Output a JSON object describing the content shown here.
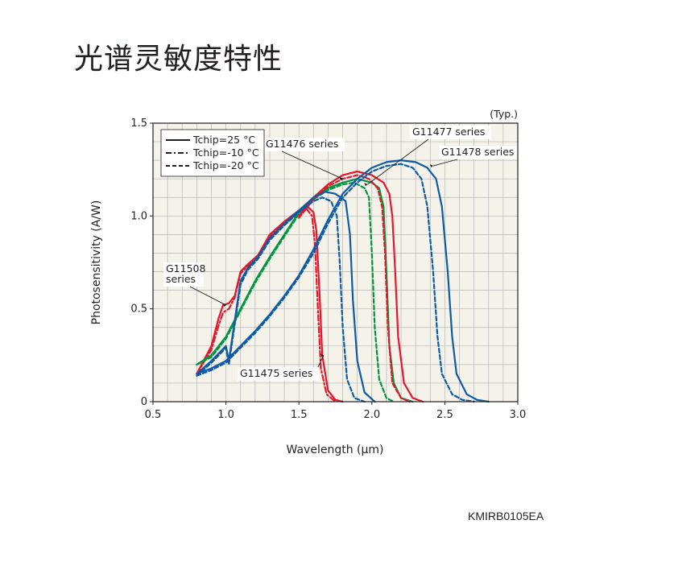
{
  "page": {
    "title": "光谱灵敏度特性",
    "figure_code": "KMIRB0105EA"
  },
  "colors": {
    "G11508": "#e3182d",
    "G11475": "#e3182d",
    "G11476": "#00963f",
    "G11477": "#e3182d",
    "G11478": "#0d5ba6",
    "grid": "#b5b5b5",
    "plot_bg": "#f5f2ea",
    "axis": "#231f20"
  },
  "chart_data": {
    "type": "line",
    "title": "",
    "xlabel": "Wavelength (µm)",
    "ylabel": "Photosensitivity (A/W)",
    "typ_note": "(Typ.)",
    "xlim": [
      0.5,
      3.0
    ],
    "ylim": [
      0,
      1.5
    ],
    "x_ticks": [
      "0.5",
      "1.0",
      "1.5",
      "2.0",
      "2.5",
      "3.0"
    ],
    "y_ticks": [
      "0",
      "0.5",
      "1.0",
      "1.5"
    ],
    "grid": true,
    "legend": {
      "placement": "top-left",
      "entries": [
        {
          "label": "Tchip=25 °C",
          "style": "solid"
        },
        {
          "label": "Tchip=-10 °C",
          "style": "dashdot"
        },
        {
          "label": "Tchip=-20 °C",
          "style": "dashed"
        }
      ]
    },
    "annotations": [
      {
        "text": "G11508\nseries",
        "target": [
          1.0,
          0.52
        ]
      },
      {
        "text": "G11475 series",
        "target": [
          1.67,
          0.25
        ]
      },
      {
        "text": "G11476 series",
        "target": [
          1.8,
          1.2
        ]
      },
      {
        "text": "G11477 series",
        "target": [
          1.97,
          1.17
        ]
      },
      {
        "text": "G11478 series",
        "target": [
          2.42,
          1.27
        ]
      }
    ],
    "series": [
      {
        "name": "G11508 series",
        "family": "G11508",
        "tchip": "25 °C",
        "style": "solid",
        "colorKey": "G11508",
        "points": [
          [
            0.8,
            0.15
          ],
          [
            0.9,
            0.3
          ],
          [
            0.95,
            0.45
          ],
          [
            0.98,
            0.52
          ],
          [
            1.02,
            0.53
          ],
          [
            1.06,
            0.57
          ],
          [
            1.1,
            0.7
          ],
          [
            1.15,
            0.74
          ],
          [
            1.22,
            0.79
          ],
          [
            1.3,
            0.9
          ],
          [
            1.4,
            0.97
          ],
          [
            1.5,
            1.03
          ],
          [
            1.56,
            1.05
          ],
          [
            1.6,
            1.02
          ],
          [
            1.62,
            0.92
          ],
          [
            1.64,
            0.6
          ],
          [
            1.66,
            0.25
          ],
          [
            1.7,
            0.06
          ],
          [
            1.75,
            0.01
          ],
          [
            1.8,
            0
          ]
        ]
      },
      {
        "name": "G11508 series",
        "family": "G11508",
        "tchip": "-10 °C",
        "style": "dashdot",
        "colorKey": "G11508",
        "points": [
          [
            0.8,
            0.15
          ],
          [
            0.9,
            0.28
          ],
          [
            0.95,
            0.41
          ],
          [
            0.98,
            0.48
          ],
          [
            1.02,
            0.5
          ],
          [
            1.06,
            0.56
          ],
          [
            1.1,
            0.69
          ],
          [
            1.15,
            0.73
          ],
          [
            1.22,
            0.78
          ],
          [
            1.3,
            0.89
          ],
          [
            1.4,
            0.96
          ],
          [
            1.5,
            1.02
          ],
          [
            1.55,
            1.04
          ],
          [
            1.59,
            1.0
          ],
          [
            1.61,
            0.85
          ],
          [
            1.63,
            0.5
          ],
          [
            1.65,
            0.18
          ],
          [
            1.69,
            0.04
          ],
          [
            1.75,
            0
          ]
        ]
      },
      {
        "name": "G11476 series",
        "family": "G11476",
        "tchip": "25 °C",
        "style": "solid",
        "colorKey": "G11476",
        "points": [
          [
            0.8,
            0.2
          ],
          [
            0.9,
            0.25
          ],
          [
            1.0,
            0.35
          ],
          [
            1.1,
            0.5
          ],
          [
            1.2,
            0.65
          ],
          [
            1.3,
            0.78
          ],
          [
            1.4,
            0.9
          ],
          [
            1.5,
            1.02
          ],
          [
            1.6,
            1.1
          ],
          [
            1.7,
            1.15
          ],
          [
            1.8,
            1.18
          ],
          [
            1.9,
            1.2
          ],
          [
            2.0,
            1.18
          ],
          [
            2.05,
            1.15
          ],
          [
            2.08,
            1.05
          ],
          [
            2.1,
            0.7
          ],
          [
            2.12,
            0.3
          ],
          [
            2.15,
            0.1
          ],
          [
            2.2,
            0.02
          ],
          [
            2.28,
            0
          ]
        ]
      },
      {
        "name": "G11476 series",
        "family": "G11476",
        "tchip": "-20 °C",
        "style": "dashed",
        "colorKey": "G11476",
        "points": [
          [
            0.8,
            0.2
          ],
          [
            0.9,
            0.24
          ],
          [
            1.0,
            0.34
          ],
          [
            1.1,
            0.49
          ],
          [
            1.2,
            0.64
          ],
          [
            1.3,
            0.77
          ],
          [
            1.4,
            0.89
          ],
          [
            1.5,
            1.01
          ],
          [
            1.6,
            1.09
          ],
          [
            1.7,
            1.14
          ],
          [
            1.8,
            1.17
          ],
          [
            1.88,
            1.18
          ],
          [
            1.95,
            1.15
          ],
          [
            1.98,
            1.1
          ],
          [
            2.0,
            0.8
          ],
          [
            2.02,
            0.4
          ],
          [
            2.05,
            0.12
          ],
          [
            2.1,
            0.02
          ],
          [
            2.15,
            0
          ]
        ]
      },
      {
        "name": "G11477 series",
        "family": "G11477",
        "tchip": "25 °C",
        "style": "solid",
        "colorKey": "G11477",
        "points": [
          [
            1.5,
            1.0
          ],
          [
            1.6,
            1.1
          ],
          [
            1.7,
            1.17
          ],
          [
            1.8,
            1.22
          ],
          [
            1.9,
            1.24
          ],
          [
            2.0,
            1.22
          ],
          [
            2.08,
            1.18
          ],
          [
            2.12,
            1.12
          ],
          [
            2.14,
            1.0
          ],
          [
            2.16,
            0.7
          ],
          [
            2.18,
            0.35
          ],
          [
            2.22,
            0.1
          ],
          [
            2.28,
            0.02
          ],
          [
            2.35,
            0
          ]
        ]
      },
      {
        "name": "G11477 series",
        "family": "G11477",
        "tchip": "-20 °C",
        "style": "dashed",
        "colorKey": "G11477",
        "points": [
          [
            1.5,
            0.99
          ],
          [
            1.6,
            1.09
          ],
          [
            1.7,
            1.16
          ],
          [
            1.8,
            1.2
          ],
          [
            1.9,
            1.22
          ],
          [
            1.98,
            1.2
          ],
          [
            2.04,
            1.15
          ],
          [
            2.07,
            1.05
          ],
          [
            2.09,
            0.8
          ],
          [
            2.11,
            0.4
          ],
          [
            2.14,
            0.1
          ],
          [
            2.2,
            0.02
          ],
          [
            2.26,
            0
          ]
        ]
      },
      {
        "name": "G11478 series",
        "family": "G11478",
        "tchip": "25 °C",
        "style": "solid",
        "colorKey": "G11478",
        "points": [
          [
            0.8,
            0.15
          ],
          [
            0.9,
            0.18
          ],
          [
            1.0,
            0.22
          ],
          [
            1.1,
            0.3
          ],
          [
            1.2,
            0.38
          ],
          [
            1.3,
            0.47
          ],
          [
            1.4,
            0.57
          ],
          [
            1.5,
            0.68
          ],
          [
            1.6,
            0.82
          ],
          [
            1.7,
            0.98
          ],
          [
            1.8,
            1.12
          ],
          [
            1.9,
            1.2
          ],
          [
            2.0,
            1.26
          ],
          [
            2.1,
            1.29
          ],
          [
            2.2,
            1.3
          ],
          [
            2.3,
            1.29
          ],
          [
            2.38,
            1.26
          ],
          [
            2.44,
            1.2
          ],
          [
            2.48,
            1.05
          ],
          [
            2.52,
            0.7
          ],
          [
            2.55,
            0.35
          ],
          [
            2.58,
            0.15
          ],
          [
            2.65,
            0.04
          ],
          [
            2.72,
            0.01
          ],
          [
            2.8,
            0
          ]
        ]
      },
      {
        "name": "G11478 series",
        "family": "G11478",
        "tchip": "-20 °C",
        "style": "dashed",
        "colorKey": "G11478",
        "points": [
          [
            0.8,
            0.14
          ],
          [
            0.9,
            0.17
          ],
          [
            1.0,
            0.21
          ],
          [
            1.1,
            0.29
          ],
          [
            1.2,
            0.37
          ],
          [
            1.3,
            0.46
          ],
          [
            1.4,
            0.56
          ],
          [
            1.5,
            0.67
          ],
          [
            1.6,
            0.8
          ],
          [
            1.7,
            0.96
          ],
          [
            1.8,
            1.1
          ],
          [
            1.9,
            1.18
          ],
          [
            2.0,
            1.24
          ],
          [
            2.1,
            1.27
          ],
          [
            2.2,
            1.28
          ],
          [
            2.28,
            1.26
          ],
          [
            2.34,
            1.2
          ],
          [
            2.38,
            1.05
          ],
          [
            2.42,
            0.7
          ],
          [
            2.45,
            0.35
          ],
          [
            2.48,
            0.15
          ],
          [
            2.55,
            0.04
          ],
          [
            2.62,
            0.01
          ],
          [
            2.7,
            0
          ]
        ]
      },
      {
        "name": "G11475 series",
        "family": "G11475",
        "tchip": "25 °C",
        "style": "solid",
        "colorKey": "G11478",
        "points": [
          [
            0.8,
            0.15
          ],
          [
            0.9,
            0.22
          ],
          [
            1.0,
            0.3
          ],
          [
            1.02,
            0.22
          ],
          [
            1.1,
            0.65
          ],
          [
            1.15,
            0.72
          ],
          [
            1.22,
            0.78
          ],
          [
            1.3,
            0.88
          ],
          [
            1.4,
            0.96
          ],
          [
            1.5,
            1.03
          ],
          [
            1.6,
            1.1
          ],
          [
            1.68,
            1.13
          ],
          [
            1.75,
            1.12
          ],
          [
            1.82,
            1.08
          ],
          [
            1.85,
            0.9
          ],
          [
            1.87,
            0.55
          ],
          [
            1.9,
            0.22
          ],
          [
            1.95,
            0.05
          ],
          [
            2.02,
            0
          ]
        ]
      },
      {
        "name": "G11475 series",
        "family": "G11475",
        "tchip": "-20 °C",
        "style": "dashed",
        "colorKey": "G11478",
        "points": [
          [
            0.8,
            0.14
          ],
          [
            0.9,
            0.21
          ],
          [
            1.0,
            0.29
          ],
          [
            1.02,
            0.2
          ],
          [
            1.1,
            0.63
          ],
          [
            1.15,
            0.71
          ],
          [
            1.22,
            0.77
          ],
          [
            1.3,
            0.87
          ],
          [
            1.4,
            0.95
          ],
          [
            1.5,
            1.02
          ],
          [
            1.6,
            1.08
          ],
          [
            1.66,
            1.1
          ],
          [
            1.72,
            1.08
          ],
          [
            1.76,
            1.0
          ],
          [
            1.78,
            0.75
          ],
          [
            1.8,
            0.4
          ],
          [
            1.83,
            0.12
          ],
          [
            1.88,
            0.02
          ],
          [
            1.95,
            0
          ]
        ]
      }
    ]
  }
}
